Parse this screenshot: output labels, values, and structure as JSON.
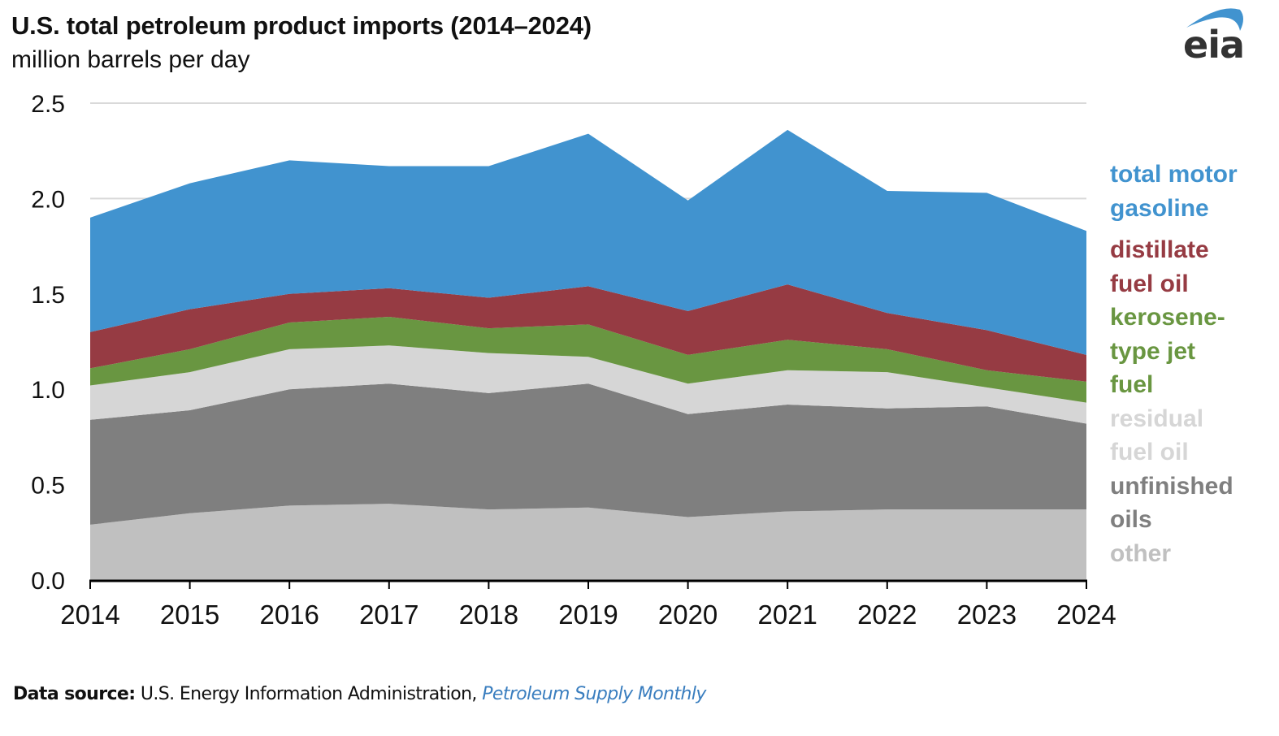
{
  "header": {
    "title": "U.S. total petroleum product imports (2014–2024)",
    "subtitle": "million barrels per day",
    "logo_text": "eia"
  },
  "footer": {
    "source_label": "Data source:",
    "source_text": "U.S. Energy Information Administration,",
    "source_publication": "Petroleum Supply Monthly"
  },
  "legend": [
    {
      "lines": [
        "total motor",
        "gasoline"
      ],
      "color": "#4193cf"
    },
    {
      "lines": [
        "distillate",
        "fuel oil"
      ],
      "color": "#963b43"
    },
    {
      "lines": [
        "kerosene-",
        "type jet",
        "fuel"
      ],
      "color": "#699641"
    },
    {
      "lines": [
        "residual",
        "fuel oil"
      ],
      "color": "#d6d6d6"
    },
    {
      "lines": [
        "unfinished",
        "oils"
      ],
      "color": "#7f7f7f"
    },
    {
      "lines": [
        "other"
      ],
      "color": "#c0c0c0"
    }
  ],
  "chart_data": {
    "type": "area",
    "stacked": true,
    "title": "U.S. total petroleum product imports (2014–2024)",
    "subtitle": "million barrels per day",
    "xlabel": "",
    "ylabel": "million barrels per day",
    "categories": [
      "2014",
      "2015",
      "2016",
      "2017",
      "2018",
      "2019",
      "2020",
      "2021",
      "2022",
      "2023",
      "2024"
    ],
    "ylim": [
      0,
      2.5
    ],
    "yticks": [
      "0.0",
      "0.5",
      "1.0",
      "1.5",
      "2.0",
      "2.5"
    ],
    "grid": true,
    "legend_position": "right",
    "series": [
      {
        "name": "other",
        "color": "#c0c0c0",
        "values": [
          0.29,
          0.35,
          0.39,
          0.4,
          0.37,
          0.38,
          0.33,
          0.36,
          0.37,
          0.37,
          0.37
        ]
      },
      {
        "name": "unfinished oils",
        "color": "#7f7f7f",
        "values": [
          0.55,
          0.54,
          0.61,
          0.63,
          0.61,
          0.65,
          0.54,
          0.56,
          0.53,
          0.54,
          0.45
        ]
      },
      {
        "name": "residual fuel oil",
        "color": "#d6d6d6",
        "values": [
          0.18,
          0.2,
          0.21,
          0.2,
          0.21,
          0.14,
          0.16,
          0.18,
          0.19,
          0.1,
          0.11
        ]
      },
      {
        "name": "kerosene-type jet fuel",
        "color": "#699641",
        "values": [
          0.09,
          0.12,
          0.14,
          0.15,
          0.13,
          0.17,
          0.15,
          0.16,
          0.12,
          0.09,
          0.11
        ]
      },
      {
        "name": "distillate fuel oil",
        "color": "#963b43",
        "values": [
          0.19,
          0.21,
          0.15,
          0.15,
          0.16,
          0.2,
          0.23,
          0.29,
          0.19,
          0.21,
          0.14
        ]
      },
      {
        "name": "total motor gasoline",
        "color": "#4193cf",
        "values": [
          0.6,
          0.66,
          0.7,
          0.64,
          0.69,
          0.8,
          0.58,
          0.81,
          0.64,
          0.72,
          0.65
        ]
      }
    ]
  }
}
